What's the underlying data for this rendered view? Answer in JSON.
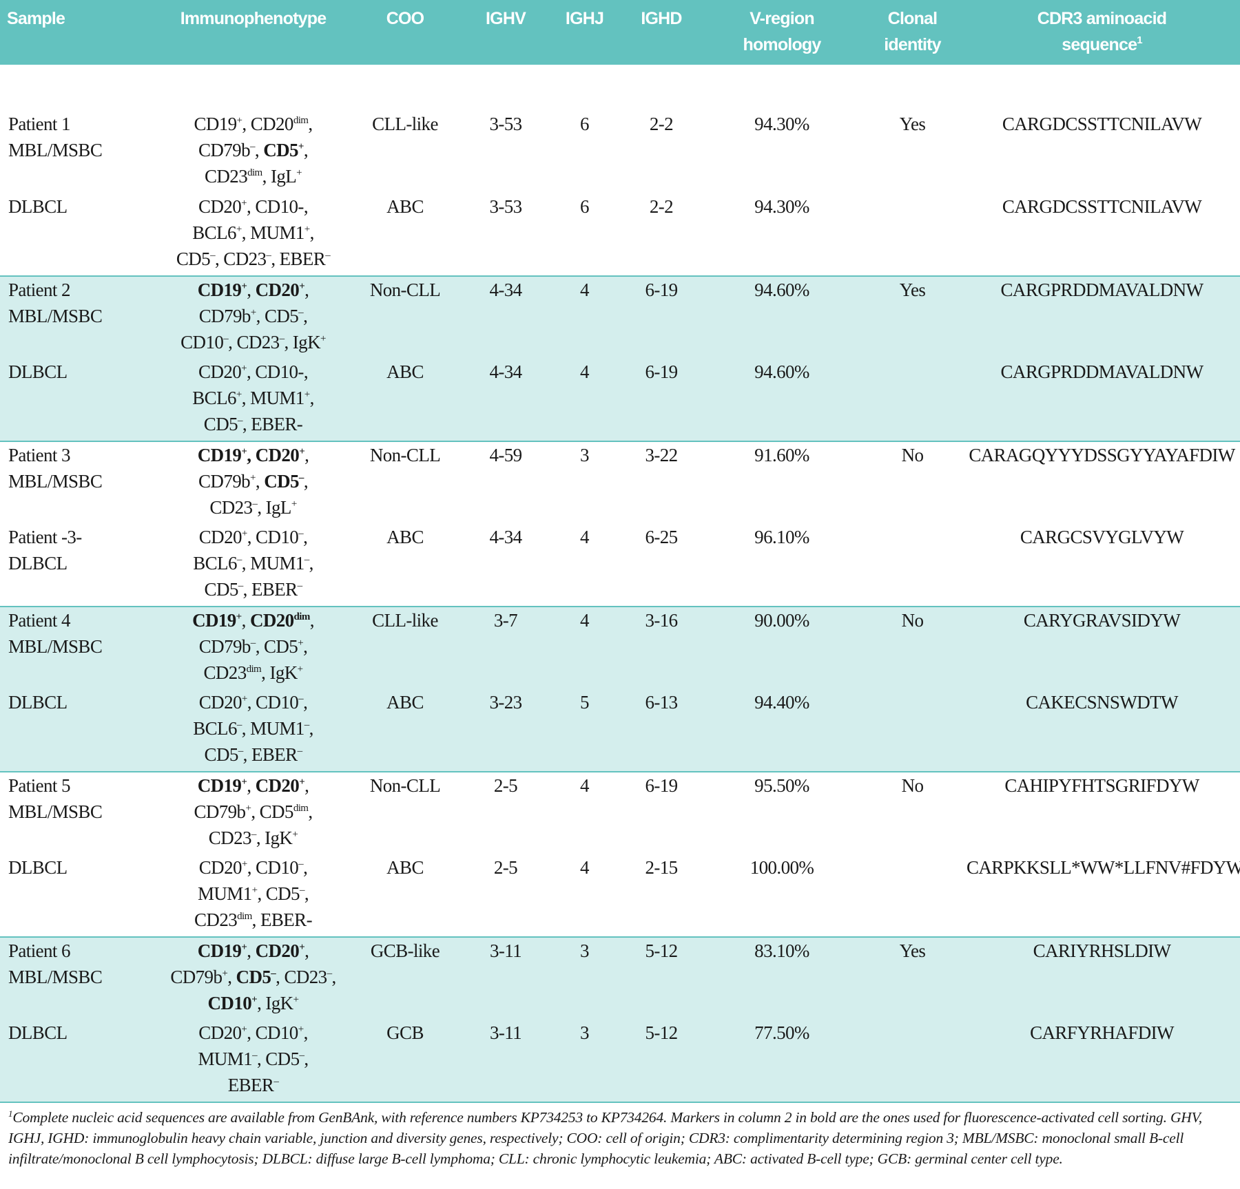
{
  "header": {
    "columns": [
      [
        "Sample"
      ],
      [
        "Immunophenotype"
      ],
      [
        "COO"
      ],
      [
        "IGHV"
      ],
      [
        "IGHJ"
      ],
      [
        "IGHD"
      ],
      [
        "V-region",
        "homology"
      ],
      [
        "Clonal",
        "identity"
      ],
      [
        "CDR3 aminoacid",
        [
          {
            "t": "sequence",
            "s": "1"
          }
        ]
      ]
    ]
  },
  "table": {
    "rows": [
      {
        "samples": [
          {
            "sample": [
              "Patient 1",
              "MBL/MSBC"
            ],
            "immunophenotype": [
              [
                {
                  "t": "CD19",
                  "s": "+"
                },
                {
                  "t": ", CD20",
                  "s": "dim"
                },
                {
                  "t": ","
                }
              ],
              [
                {
                  "t": "CD79b",
                  "s": "–"
                },
                {
                  "t": ", "
                },
                {
                  "t": "CD5",
                  "s": "+",
                  "b": true
                },
                {
                  "t": ","
                }
              ],
              [
                {
                  "t": "CD23",
                  "s": "dim"
                },
                {
                  "t": ", IgL",
                  "s": "+"
                }
              ]
            ],
            "coo": "CLL-like",
            "ighv": "3-53",
            "ighj": "6",
            "ighd": "2-2",
            "homology": "94.30%",
            "clonal_identity": "Yes",
            "cdr3": "CARGDCSSTTCNILAVW"
          },
          {
            "sample": [
              "DLBCL"
            ],
            "immunophenotype": [
              [
                {
                  "t": "CD20",
                  "s": "+"
                },
                {
                  "t": ", CD10-,"
                }
              ],
              [
                {
                  "t": "BCL6",
                  "s": "+"
                },
                {
                  "t": ", MUM1",
                  "s": "+"
                },
                {
                  "t": ","
                }
              ],
              [
                {
                  "t": "CD5",
                  "s": "–"
                },
                {
                  "t": ", CD23",
                  "s": "–"
                },
                {
                  "t": ", EBER",
                  "s": "–"
                }
              ]
            ],
            "coo": "ABC",
            "ighv": "3-53",
            "ighj": "6",
            "ighd": "2-2",
            "homology": "94.30%",
            "cdr3": "CARGDCSSTTCNILAVW"
          }
        ]
      },
      {
        "samples": [
          {
            "sample": [
              "Patient 2",
              "MBL/MSBC"
            ],
            "immunophenotype": [
              [
                {
                  "t": "CD19",
                  "s": "+",
                  "b": true
                },
                {
                  "t": ", "
                },
                {
                  "t": "CD20",
                  "s": "+",
                  "b": true
                },
                {
                  "t": ","
                }
              ],
              [
                {
                  "t": "CD79b",
                  "s": "+"
                },
                {
                  "t": ", CD5",
                  "s": "–"
                },
                {
                  "t": ","
                }
              ],
              [
                {
                  "t": "CD10",
                  "s": "–"
                },
                {
                  "t": ", CD23",
                  "s": "–"
                },
                {
                  "t": ", IgK",
                  "s": "+"
                }
              ]
            ],
            "coo": "Non-CLL",
            "ighv": "4-34",
            "ighj": "4",
            "ighd": "6-19",
            "homology": "94.60%",
            "clonal_identity": "Yes",
            "cdr3": "CARGPRDDMAVALDNW"
          },
          {
            "sample": [
              "DLBCL"
            ],
            "immunophenotype": [
              [
                {
                  "t": "CD20",
                  "s": "+"
                },
                {
                  "t": ", CD10-,"
                }
              ],
              [
                {
                  "t": "BCL6",
                  "s": "+"
                },
                {
                  "t": ", MUM1",
                  "s": "+"
                },
                {
                  "t": ","
                }
              ],
              [
                {
                  "t": "CD5",
                  "s": "–"
                },
                {
                  "t": ", EBER-"
                }
              ]
            ],
            "coo": "ABC",
            "ighv": "4-34",
            "ighj": "4",
            "ighd": "6-19",
            "homology": "94.60%",
            "cdr3": "CARGPRDDMAVALDNW"
          }
        ]
      },
      {
        "samples": [
          {
            "sample": [
              "Patient 3",
              "MBL/MSBC"
            ],
            "immunophenotype": [
              [
                {
                  "t": "CD19",
                  "s": "+",
                  "b": true
                },
                {
                  "t": ", ",
                  "b": true
                },
                {
                  "t": "CD20",
                  "s": "+",
                  "b": true
                },
                {
                  "t": ","
                }
              ],
              [
                {
                  "t": "CD79b",
                  "s": "+"
                },
                {
                  "t": ", "
                },
                {
                  "t": "CD5",
                  "s": "–",
                  "b": true
                },
                {
                  "t": ","
                }
              ],
              [
                {
                  "t": "CD23",
                  "s": "–"
                },
                {
                  "t": ", IgL",
                  "s": "+"
                }
              ]
            ],
            "coo": "Non-CLL",
            "ighv": "4-59",
            "ighj": "3",
            "ighd": "3-22",
            "homology": "91.60%",
            "clonal_identity": "No",
            "cdr3": "CARAGQYYYDSSGYYAYAFDIW"
          },
          {
            "sample": [
              "Patient -3-",
              "DLBCL"
            ],
            "immunophenotype": [
              [
                {
                  "t": "CD20",
                  "s": "+"
                },
                {
                  "t": ", CD10",
                  "s": "–"
                },
                {
                  "t": ","
                }
              ],
              [
                {
                  "t": "BCL6",
                  "s": "–"
                },
                {
                  "t": ", MUM1",
                  "s": "–"
                },
                {
                  "t": ","
                }
              ],
              [
                {
                  "t": "CD5",
                  "s": "–"
                },
                {
                  "t": ", EBER",
                  "s": "–"
                }
              ]
            ],
            "coo": "ABC",
            "ighv": "4-34",
            "ighj": "4",
            "ighd": "6-25",
            "homology": "96.10%",
            "cdr3": "CARGCSVYGLVYW"
          }
        ]
      },
      {
        "samples": [
          {
            "sample": [
              "Patient 4",
              "MBL/MSBC"
            ],
            "immunophenotype": [
              [
                {
                  "t": "CD19",
                  "s": "+",
                  "b": true
                },
                {
                  "t": ", "
                },
                {
                  "t": "CD20",
                  "s": "dim",
                  "b": true
                },
                {
                  "t": ","
                }
              ],
              [
                {
                  "t": "CD79b",
                  "s": "–"
                },
                {
                  "t": ", CD5",
                  "s": "+"
                },
                {
                  "t": ","
                }
              ],
              [
                {
                  "t": "CD23",
                  "s": "dim"
                },
                {
                  "t": ", IgK",
                  "s": "+"
                }
              ]
            ],
            "coo": "CLL-like",
            "ighv": "3-7",
            "ighj": "4",
            "ighd": "3-16",
            "homology": "90.00%",
            "clonal_identity": "No",
            "cdr3": "CARYGRAVSIDYW"
          },
          {
            "sample": [
              "DLBCL"
            ],
            "immunophenotype": [
              [
                {
                  "t": "CD20",
                  "s": "+"
                },
                {
                  "t": ", CD10",
                  "s": "–"
                },
                {
                  "t": ","
                }
              ],
              [
                {
                  "t": "BCL6",
                  "s": "–"
                },
                {
                  "t": ", MUM1",
                  "s": "–"
                },
                {
                  "t": ","
                }
              ],
              [
                {
                  "t": "CD5",
                  "s": "–"
                },
                {
                  "t": ", EBER",
                  "s": "–"
                }
              ]
            ],
            "coo": "ABC",
            "ighv": "3-23",
            "ighj": "5",
            "ighd": "6-13",
            "homology": "94.40%",
            "cdr3": "CAKECSNSWDTW"
          }
        ]
      },
      {
        "samples": [
          {
            "sample": [
              "Patient 5",
              "MBL/MSBC"
            ],
            "immunophenotype": [
              [
                {
                  "t": "CD19",
                  "s": "+",
                  "b": true
                },
                {
                  "t": ", "
                },
                {
                  "t": "CD20",
                  "s": "+",
                  "b": true
                },
                {
                  "t": ","
                }
              ],
              [
                {
                  "t": "CD79b",
                  "s": "+"
                },
                {
                  "t": ", CD5",
                  "s": "dim"
                },
                {
                  "t": ","
                }
              ],
              [
                {
                  "t": "CD23",
                  "s": "–"
                },
                {
                  "t": ", IgK",
                  "s": "+"
                }
              ]
            ],
            "coo": "Non-CLL",
            "ighv": "2-5",
            "ighj": "4",
            "ighd": "6-19",
            "homology": "95.50%",
            "clonal_identity": "No",
            "cdr3": "CAHIPYFHTSGRIFDYW"
          },
          {
            "sample": [
              "DLBCL"
            ],
            "immunophenotype": [
              [
                {
                  "t": "CD20",
                  "s": "+"
                },
                {
                  "t": ", CD10",
                  "s": "–"
                },
                {
                  "t": ","
                }
              ],
              [
                {
                  "t": "MUM1",
                  "s": "+"
                },
                {
                  "t": ", CD5",
                  "s": "–"
                },
                {
                  "t": ","
                }
              ],
              [
                {
                  "t": "CD23",
                  "s": "dim"
                },
                {
                  "t": ", EBER-"
                }
              ]
            ],
            "coo": "ABC",
            "ighv": "2-5",
            "ighj": "4",
            "ighd": "2-15",
            "homology": "100.00%",
            "cdr3": "CARPKKSLL*WW*LLFNV#FDYW"
          }
        ]
      },
      {
        "samples": [
          {
            "sample": [
              "Patient 6",
              "MBL/MSBC"
            ],
            "immunophenotype": [
              [
                {
                  "t": "CD19",
                  "s": "+",
                  "b": true
                },
                {
                  "t": ", "
                },
                {
                  "t": "CD20",
                  "s": "+",
                  "b": true
                },
                {
                  "t": ","
                }
              ],
              [
                {
                  "t": "CD79b",
                  "s": "+"
                },
                {
                  "t": ", "
                },
                {
                  "t": "CD5",
                  "s": "–",
                  "b": true
                },
                {
                  "t": ", CD23",
                  "s": "–"
                },
                {
                  "t": ","
                }
              ],
              [
                {
                  "t": "CD10",
                  "s": "+",
                  "b": true
                },
                {
                  "t": ", IgK",
                  "s": "+"
                }
              ]
            ],
            "coo": "GCB-like",
            "ighv": "3-11",
            "ighj": "3",
            "ighd": "5-12",
            "homology": "83.10%",
            "clonal_identity": "Yes",
            "cdr3": "CARIYRHSLDIW"
          },
          {
            "sample": [
              "DLBCL"
            ],
            "immunophenotype": [
              [
                {
                  "t": "CD20",
                  "s": "+"
                },
                {
                  "t": ", CD10",
                  "s": "+"
                },
                {
                  "t": ","
                }
              ],
              [
                {
                  "t": "MUM1",
                  "s": "–"
                },
                {
                  "t": ", CD5",
                  "s": "–"
                },
                {
                  "t": ","
                }
              ],
              [
                {
                  "t": "EBER",
                  "s": "–"
                }
              ]
            ],
            "coo": "GCB",
            "ighv": "3-11",
            "ighj": "3",
            "ighd": "5-12",
            "homology": "77.50%",
            "cdr3": "CARFYRHAFDIW"
          }
        ]
      }
    ]
  },
  "footnote": {
    "marker": "1",
    "text": "Complete nucleic acid sequences are available from GenBAnk, with reference numbers KP734253 to KP734264. Markers in column 2 in bold are the ones used for fluorescence-activated cell sorting. GHV, IGHJ, IGHD: immunoglobulin heavy chain variable, junction and diversity genes, respectively; COO: cell of origin; CDR3: complimentarity determining region 3; MBL/MSBC: monoclonal small B-cell infiltrate/monoclonal B cell lymphocytosis; DLBCL: diffuse large B-cell lymphoma; CLL: chronic lymphocytic leukemia; ABC: activated B-cell type; GCB: germinal center cell type."
  }
}
